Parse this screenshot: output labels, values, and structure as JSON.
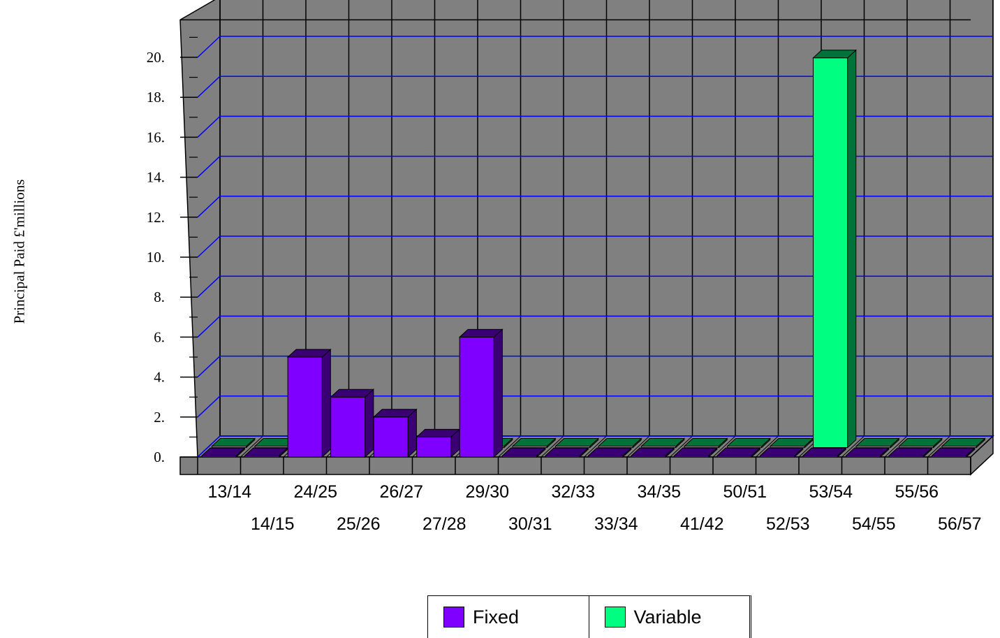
{
  "chart_data": {
    "type": "bar",
    "ylabel": "Principal Paid £'millions",
    "xlabel": "",
    "title": "",
    "ylim": [
      0,
      21
    ],
    "yticks": [
      "0.",
      "2.",
      "4.",
      "6.",
      "8.",
      "10.",
      "12.",
      "14.",
      "16.",
      "18.",
      "20."
    ],
    "categories": [
      "13/14",
      "14/15",
      "24/25",
      "25/26",
      "26/27",
      "27/28",
      "29/30",
      "30/31",
      "32/33",
      "33/34",
      "34/35",
      "41/42",
      "50/51",
      "52/53",
      "53/54",
      "54/55",
      "55/56",
      "56/57"
    ],
    "series": [
      {
        "name": "Fixed",
        "color": "#8000ff",
        "values": [
          0,
          0,
          5.0,
          3.0,
          2.0,
          1.0,
          6.0,
          0,
          0,
          0,
          0,
          0,
          0,
          0,
          0,
          0,
          0,
          0
        ]
      },
      {
        "name": "Variable",
        "color": "#00ff80",
        "values": [
          0,
          0,
          0,
          0,
          0,
          0,
          0,
          0,
          0,
          0,
          0,
          0,
          0,
          0,
          19.5,
          0,
          0,
          0
        ]
      }
    ],
    "grid": true,
    "gridline_color": "#0000ff",
    "wall_color": "#808080",
    "legend_position": "bottom"
  }
}
